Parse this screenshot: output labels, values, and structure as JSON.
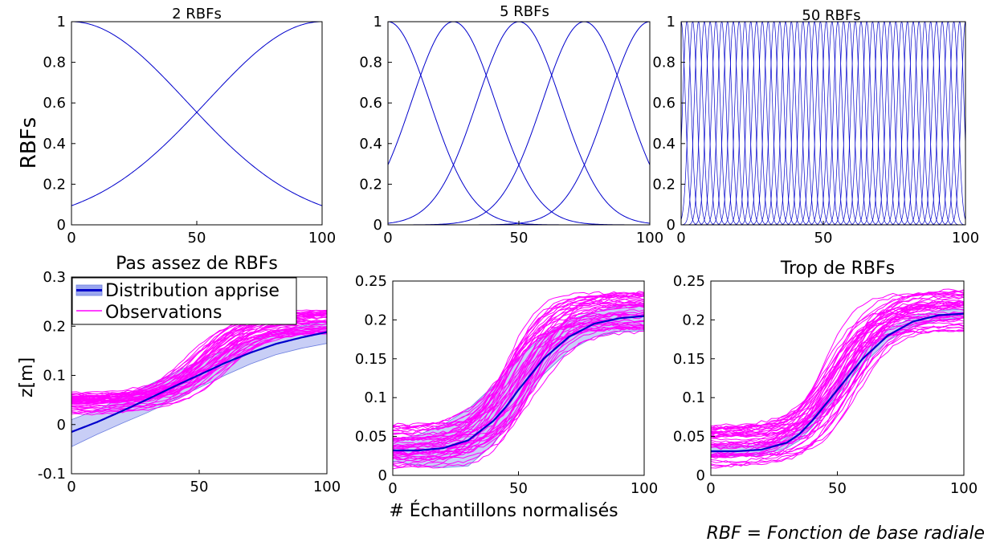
{
  "colors": {
    "rbf_line": "#0000cc",
    "mean_line": "#0000cc",
    "band_fill": "#9aa6ee",
    "band_edge": "#6d7fe0",
    "observations": "#ff00ff",
    "warning_title": "#ff3333"
  },
  "top_ylabel": "RBFs",
  "bottom_ylabel": "z[m]",
  "bottom_xlabel": "# Échantillons normalisés",
  "footnote": "RBF = Fonction de base radiale",
  "legend": {
    "placement": "top-left",
    "mean_label": "Distribution apprise",
    "obs_label": "Observations"
  },
  "chart_data": [
    {
      "id": "rbf2",
      "type": "line",
      "title": "2 RBFs",
      "title_color": "black",
      "n_rbf": 2,
      "centers": [
        0,
        100
      ],
      "width": 46,
      "xlim": [
        0,
        100
      ],
      "ylim": [
        0,
        1
      ],
      "xticks": [
        0,
        50,
        100
      ],
      "xtick_labels": [
        "0",
        "50",
        "100"
      ],
      "yticks": [
        0,
        0.2,
        0.4,
        0.6,
        0.8,
        1
      ],
      "ytick_labels": [
        "0",
        "0.2",
        "0.4",
        "0.6",
        "0.8",
        "1"
      ],
      "ylabel": "RBFs"
    },
    {
      "id": "rbf5",
      "type": "line",
      "title": "5 RBFs",
      "title_color": "black",
      "n_rbf": 5,
      "centers": [
        0,
        25,
        50,
        75,
        100
      ],
      "width": 16,
      "xlim": [
        0,
        100
      ],
      "ylim": [
        0,
        1
      ],
      "xticks": [
        0,
        50,
        100
      ],
      "xtick_labels": [
        "0",
        "50",
        "100"
      ],
      "yticks": [
        0,
        0.2,
        0.4,
        0.6,
        0.8,
        1
      ],
      "ytick_labels": [
        "0",
        "0.2",
        "0.4",
        "0.6",
        "0.8",
        "1"
      ]
    },
    {
      "id": "rbf50",
      "type": "line",
      "title": "50 RBFs",
      "title_color": "black",
      "n_rbf": 50,
      "centers_range": [
        0,
        100
      ],
      "width": 1.5,
      "xlim": [
        0,
        100
      ],
      "ylim": [
        0,
        1
      ],
      "xticks": [
        0,
        50,
        100
      ],
      "xtick_labels": [
        "0",
        "50",
        "100"
      ],
      "yticks": [
        0,
        0.2,
        0.4,
        0.6,
        0.8,
        1
      ],
      "ytick_labels": [
        "0",
        "0.2",
        "0.4",
        "0.6",
        "0.8",
        "1"
      ]
    },
    {
      "id": "z_few",
      "type": "line",
      "title": "Pas assez de RBFs",
      "title_color": "red",
      "xlim": [
        0,
        100
      ],
      "ylim": [
        -0.1,
        0.3
      ],
      "xticks": [
        0,
        50,
        100
      ],
      "xtick_labels": [
        "0",
        "50",
        "100"
      ],
      "yticks": [
        -0.1,
        0,
        0.1,
        0.2,
        0.3
      ],
      "ytick_labels": [
        "-0.1",
        "0",
        "0.1",
        "0.2",
        "0.3"
      ],
      "ylabel": "z[m]",
      "mean": {
        "x": [
          0,
          10,
          20,
          30,
          40,
          50,
          60,
          70,
          80,
          90,
          100
        ],
        "y": [
          -0.015,
          0.005,
          0.028,
          0.052,
          0.077,
          0.101,
          0.125,
          0.146,
          0.164,
          0.177,
          0.188
        ]
      },
      "band": {
        "x": [
          0,
          10,
          20,
          30,
          40,
          50,
          60,
          70,
          80,
          90,
          100
        ],
        "lower": [
          -0.045,
          -0.02,
          0.003,
          0.025,
          0.05,
          0.075,
          0.1,
          0.123,
          0.142,
          0.155,
          0.165
        ],
        "upper": [
          0.01,
          0.03,
          0.055,
          0.08,
          0.105,
          0.128,
          0.15,
          0.171,
          0.188,
          0.2,
          0.21
        ]
      },
      "observations": {
        "count": 45,
        "low_range": [
          0.02,
          0.065
        ],
        "high_range": [
          0.185,
          0.235
        ],
        "midpoint_range": [
          44,
          62
        ],
        "slope_range": [
          0.085,
          0.14
        ]
      }
    },
    {
      "id": "z_good",
      "type": "line",
      "title": "",
      "title_color": "black",
      "xlim": [
        0,
        100
      ],
      "ylim": [
        0,
        0.25
      ],
      "xticks": [
        0,
        50,
        100
      ],
      "xtick_labels": [
        "0",
        "50",
        "100"
      ],
      "yticks": [
        0,
        0.05,
        0.1,
        0.15,
        0.2,
        0.25
      ],
      "ytick_labels": [
        "0",
        "0.05",
        "0.1",
        "0.15",
        "0.2",
        "0.25"
      ],
      "xlabel": "# Échantillons normalisés",
      "mean": {
        "x": [
          0,
          10,
          20,
          30,
          40,
          45,
          50,
          55,
          60,
          70,
          80,
          90,
          100
        ],
        "y": [
          0.032,
          0.032,
          0.035,
          0.045,
          0.07,
          0.088,
          0.11,
          0.13,
          0.15,
          0.178,
          0.195,
          0.202,
          0.205
        ]
      },
      "band": {
        "x": [
          0,
          10,
          20,
          30,
          40,
          50,
          60,
          70,
          80,
          90,
          100
        ],
        "lower": [
          0.018,
          0.013,
          0.01,
          0.012,
          0.04,
          0.085,
          0.13,
          0.16,
          0.178,
          0.185,
          0.186
        ],
        "upper": [
          0.045,
          0.052,
          0.065,
          0.085,
          0.115,
          0.15,
          0.18,
          0.2,
          0.21,
          0.218,
          0.222
        ]
      },
      "observations": {
        "count": 45,
        "low_range": [
          0.01,
          0.065
        ],
        "high_range": [
          0.185,
          0.235
        ],
        "midpoint_range": [
          42,
          60
        ],
        "slope_range": [
          0.1,
          0.16
        ]
      }
    },
    {
      "id": "z_many",
      "type": "line",
      "title": "Trop de RBFs",
      "title_color": "red",
      "xlim": [
        0,
        100
      ],
      "ylim": [
        0,
        0.25
      ],
      "xticks": [
        0,
        50,
        100
      ],
      "xtick_labels": [
        "0",
        "50",
        "100"
      ],
      "yticks": [
        0,
        0.05,
        0.1,
        0.15,
        0.2,
        0.25
      ],
      "ytick_labels": [
        "0",
        "0.05",
        "0.1",
        "0.15",
        "0.2",
        "0.25"
      ],
      "mean": {
        "x": [
          0,
          10,
          20,
          30,
          35,
          40,
          45,
          50,
          55,
          60,
          70,
          80,
          90,
          100
        ],
        "y": [
          0.031,
          0.031,
          0.033,
          0.042,
          0.053,
          0.07,
          0.09,
          0.11,
          0.13,
          0.15,
          0.18,
          0.198,
          0.206,
          0.208
        ]
      },
      "band": {
        "x": [
          0,
          10,
          20,
          30,
          35,
          40,
          45,
          50,
          55,
          60,
          70,
          80,
          90,
          100
        ],
        "lower": [
          0.025,
          0.025,
          0.027,
          0.035,
          0.045,
          0.062,
          0.082,
          0.103,
          0.123,
          0.143,
          0.173,
          0.192,
          0.2,
          0.203
        ],
        "upper": [
          0.037,
          0.037,
          0.039,
          0.049,
          0.061,
          0.078,
          0.098,
          0.117,
          0.137,
          0.157,
          0.187,
          0.204,
          0.212,
          0.214
        ]
      },
      "observations": {
        "count": 45,
        "low_range": [
          0.01,
          0.065
        ],
        "high_range": [
          0.185,
          0.24
        ],
        "midpoint_range": [
          42,
          60
        ],
        "slope_range": [
          0.1,
          0.16
        ]
      }
    }
  ]
}
